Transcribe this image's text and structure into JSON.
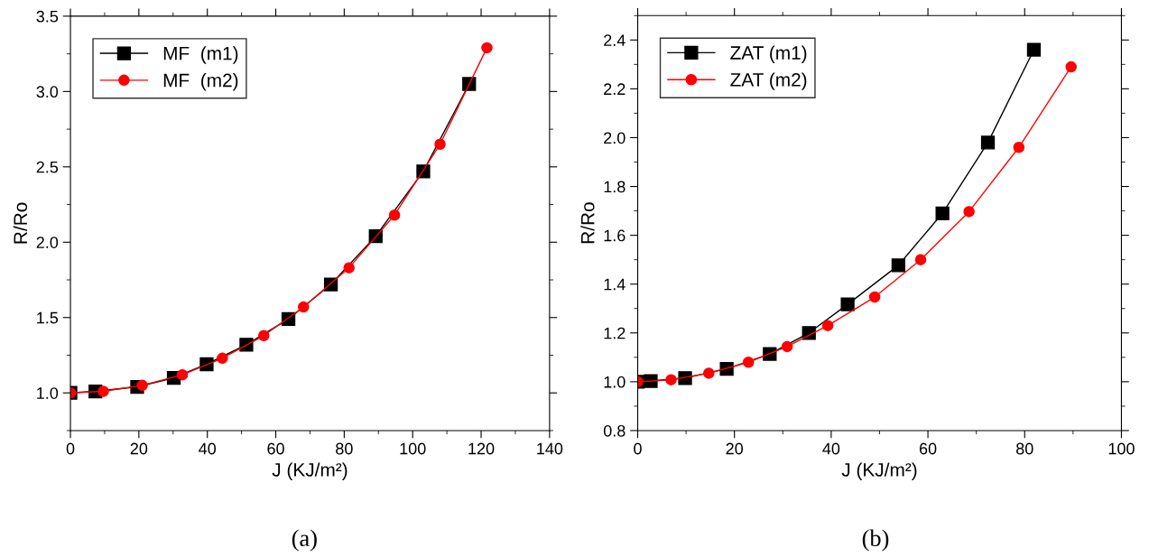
{
  "chart_data": [
    {
      "type": "line",
      "xlabel": "J (KJ/m²)",
      "ylabel": "R/Ro",
      "xlim": [
        0,
        140
      ],
      "ylim": [
        0.75,
        3.5
      ],
      "xticks": [
        0,
        20,
        40,
        60,
        80,
        100,
        120,
        140
      ],
      "yticks": [
        {
          "value": 1,
          "label": "1.0"
        },
        1.5,
        {
          "value": 2,
          "label": "2.0"
        },
        2.5,
        {
          "value": 3,
          "label": "3.0"
        },
        3.5
      ],
      "legend": "top left",
      "grid": false,
      "annotations": [
        "(a)"
      ],
      "series": [
        {
          "name": "MF  (m1)",
          "color": "#000000",
          "marker": "square",
          "x": [
            0,
            7.3,
            19.5,
            30.2,
            39.8,
            51.4,
            63.7,
            76.1,
            89.2,
            103.1,
            116.5
          ],
          "values": [
            1.0,
            1.01,
            1.04,
            1.1,
            1.19,
            1.32,
            1.49,
            1.72,
            2.04,
            2.47,
            3.05
          ]
        },
        {
          "name": "MF  (m2)",
          "color": "#ff0000",
          "marker": "circle",
          "x": [
            0,
            9.6,
            21,
            32.7,
            44.4,
            56.5,
            68.1,
            81.4,
            94.7,
            108,
            121.7
          ],
          "values": [
            1.0,
            1.01,
            1.05,
            1.12,
            1.23,
            1.38,
            1.57,
            1.83,
            2.18,
            2.65,
            3.29
          ]
        }
      ]
    },
    {
      "type": "line",
      "xlabel": "J (KJ/m²)",
      "ylabel": "R/Ro",
      "xlim": [
        0,
        100
      ],
      "ylim": [
        0.8,
        2.5
      ],
      "xticks": [
        0,
        20,
        40,
        60,
        80,
        100
      ],
      "yticks": [
        0.8,
        {
          "value": 1,
          "label": "1.0"
        },
        1.2,
        1.4,
        1.6,
        1.8,
        {
          "value": 2,
          "label": "2.0"
        },
        2.2,
        2.4
      ],
      "legend": "top left",
      "grid": false,
      "annotations": [
        "(b)"
      ],
      "series": [
        {
          "name": "ZAT (m1)",
          "color": "#000000",
          "marker": "square",
          "x": [
            0,
            2.7,
            9.8,
            18.4,
            27.3,
            35.4,
            43.4,
            53.9,
            63.0,
            72.4,
            81.9
          ],
          "values": [
            1.0,
            1.003,
            1.015,
            1.053,
            1.114,
            1.2,
            1.317,
            1.477,
            1.69,
            1.98,
            2.36
          ]
        },
        {
          "name": "ZAT (m2)",
          "color": "#ff0000",
          "marker": "circle",
          "x": [
            0,
            6.9,
            14.7,
            22.9,
            30.9,
            39.3,
            49.0,
            58.5,
            68.5,
            78.8,
            89.6
          ],
          "values": [
            1.0,
            1.008,
            1.035,
            1.08,
            1.144,
            1.23,
            1.347,
            1.5,
            1.697,
            1.96,
            2.29
          ]
        }
      ]
    }
  ]
}
